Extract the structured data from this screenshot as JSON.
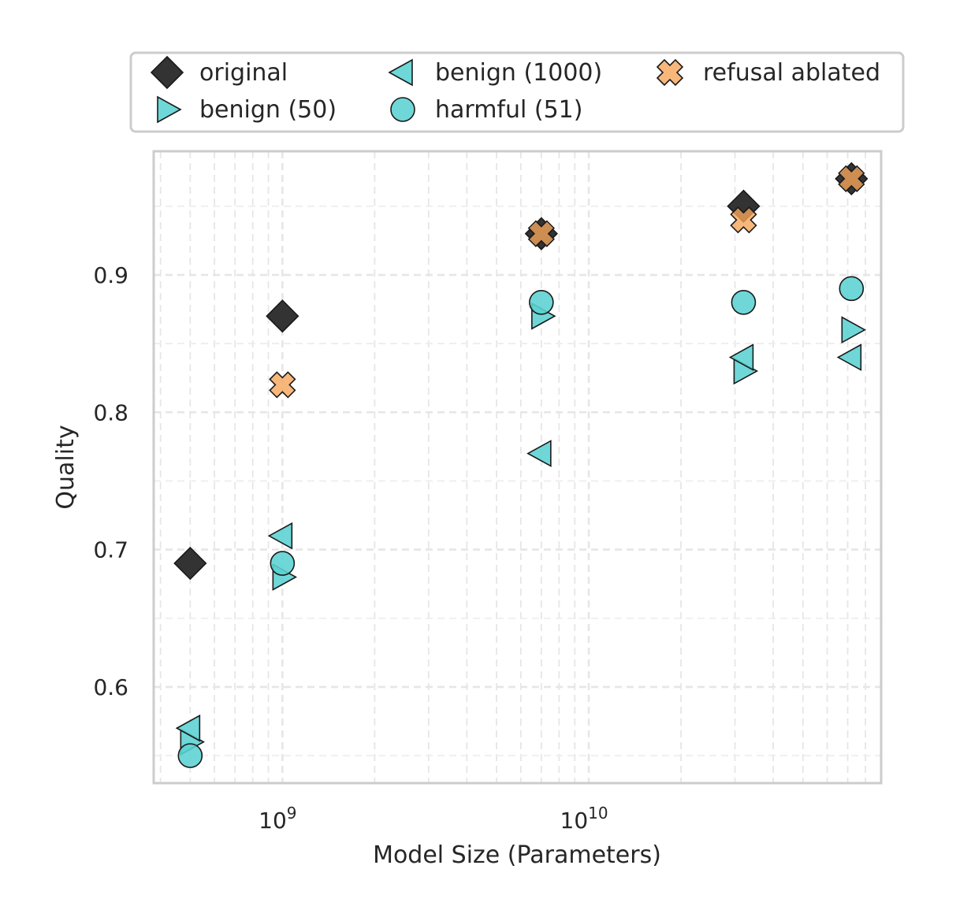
{
  "chart_data": {
    "type": "scatter",
    "title": "",
    "xlabel": "Model Size (Parameters)",
    "ylabel": "Quality",
    "xscale": "log",
    "xlim": [
      380000000,
      90000000000
    ],
    "ylim": [
      0.53,
      0.99
    ],
    "grid": true,
    "legend_position": "top",
    "x_ticks": [
      {
        "value": 1000000000,
        "base": "10",
        "exp": "9"
      },
      {
        "value": 10000000000,
        "base": "10",
        "exp": "10"
      }
    ],
    "y_ticks": [
      {
        "value": 0.6,
        "label": "0.6"
      },
      {
        "value": 0.7,
        "label": "0.7"
      },
      {
        "value": 0.8,
        "label": "0.8"
      },
      {
        "value": 0.9,
        "label": "0.9"
      }
    ],
    "series": [
      {
        "name": "original",
        "marker": "diamond",
        "color": "#333333",
        "x": [
          500000000,
          1000000000,
          7000000000,
          32000000000,
          72000000000
        ],
        "y": [
          0.69,
          0.87,
          0.93,
          0.95,
          0.97
        ]
      },
      {
        "name": "benign (50)",
        "marker": "triangle-right",
        "color": "#5bd1d1",
        "x": [
          500000000,
          1000000000,
          7000000000,
          32000000000,
          72000000000
        ],
        "y": [
          0.56,
          0.68,
          0.87,
          0.83,
          0.86
        ]
      },
      {
        "name": "benign (1000)",
        "marker": "triangle-left",
        "color": "#5bd1d1",
        "x": [
          500000000,
          1000000000,
          7000000000,
          32000000000,
          72000000000
        ],
        "y": [
          0.57,
          0.71,
          0.77,
          0.84,
          0.84
        ]
      },
      {
        "name": "harmful (51)",
        "marker": "circle",
        "color": "#5bd1d1",
        "x": [
          500000000,
          1000000000,
          7000000000,
          32000000000,
          72000000000
        ],
        "y": [
          0.55,
          0.69,
          0.88,
          0.88,
          0.89
        ]
      },
      {
        "name": "refusal ablated",
        "marker": "x",
        "color": "#f5a55a",
        "x": [
          1000000000,
          7000000000,
          32000000000,
          72000000000
        ],
        "y": [
          0.82,
          0.93,
          0.94,
          0.97
        ]
      }
    ]
  }
}
